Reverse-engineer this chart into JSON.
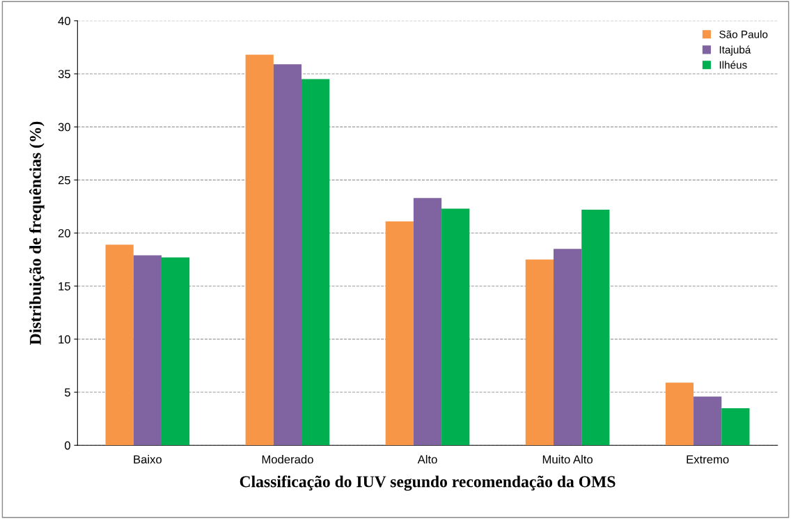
{
  "chart_data": {
    "type": "bar",
    "xlabel": "Classificação do IUV segundo recomendação da OMS",
    "ylabel": "Distribuição de frequências (%)",
    "categories": [
      "Baixo",
      "Moderado",
      "Alto",
      "Muito Alto",
      "Extremo"
    ],
    "series": [
      {
        "name": "São Paulo",
        "color": "#f79646",
        "values": [
          18.9,
          36.8,
          21.1,
          17.5,
          5.9
        ]
      },
      {
        "name": "Itajubá",
        "color": "#8064a2",
        "values": [
          17.9,
          35.9,
          23.3,
          18.5,
          4.6
        ]
      },
      {
        "name": "Ilhéus",
        "color": "#00b050",
        "values": [
          17.7,
          34.5,
          22.3,
          22.2,
          3.5
        ]
      }
    ],
    "ylim": [
      0,
      40
    ],
    "yticks": [
      0,
      5,
      10,
      15,
      20,
      25,
      30,
      35,
      40
    ],
    "grid": "y",
    "legend": "top right"
  }
}
